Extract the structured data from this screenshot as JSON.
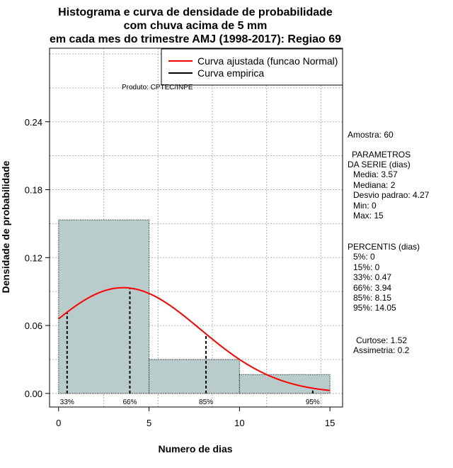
{
  "chart_data": {
    "type": "bar",
    "title_lines": [
      "Histograma e curva de densidade de probabilidade",
      "com chuva acima de 5 mm",
      "em cada mes do trimestre AMJ (1998-2017): Regiao 69"
    ],
    "xlabel": "Numero de dias",
    "ylabel": "Densidade de probabilidade",
    "xlim": [
      -0.5,
      15.7
    ],
    "ylim": [
      -0.012,
      0.305
    ],
    "x_ticks": [
      0,
      5,
      10,
      15
    ],
    "x_tick_labels": [
      "0",
      "5",
      "10",
      "15"
    ],
    "y_ticks": [
      0.0,
      0.06,
      0.12,
      0.18,
      0.24
    ],
    "y_tick_labels": [
      "0.00",
      "0.06",
      "0.12",
      "0.18",
      "0.24"
    ],
    "grid_x": [
      -0.5,
      2.5,
      5.5,
      8.5,
      11.5,
      14.5
    ],
    "grid_y": [
      0.0,
      0.03,
      0.06,
      0.09,
      0.12,
      0.15,
      0.18,
      0.21,
      0.24,
      0.27,
      0.3
    ],
    "bins": [
      {
        "start": 0,
        "end": 5,
        "density": 0.1533
      },
      {
        "start": 5,
        "end": 10,
        "density": 0.03
      },
      {
        "start": 10,
        "end": 15,
        "density": 0.0167
      }
    ],
    "bar_color": "#b8cccc",
    "normal_curve": {
      "mean": 3.57,
      "sd": 4.27,
      "color": "#ff0000"
    },
    "percentile_lines": [
      {
        "x": 0.47,
        "label": "33%"
      },
      {
        "x": 3.94,
        "label": "66%"
      },
      {
        "x": 8.15,
        "label": "85%"
      },
      {
        "x": 14.05,
        "label": "95%"
      }
    ],
    "legend": [
      {
        "label": "Curva ajustada (funcao Normal)",
        "color": "#ff0000"
      },
      {
        "label": "Curva empirica",
        "color": "#000000"
      }
    ],
    "legend_position": "top-right",
    "credit": "Produto: CPTEC/INPE"
  },
  "stats": {
    "sample": "Amostra: 60",
    "params_header_1": "PARAMETROS",
    "params_header_2": "DA SERIE (dias)",
    "media": "Media: 3.57",
    "mediana": "Mediana: 2",
    "desvio": "Desvio padrao: 4.27",
    "min": "Min: 0",
    "max": "Max: 15",
    "pct_header": "PERCENTIS (dias)",
    "p5": "5%: 0",
    "p15": "15%: 0",
    "p33": "33%: 0.47",
    "p66": "66%: 3.94",
    "p85": "85%: 8.15",
    "p95": "95%: 14.05",
    "curtose": "Curtose: 1.52",
    "assimetria": "Assimetria: 0.2"
  }
}
